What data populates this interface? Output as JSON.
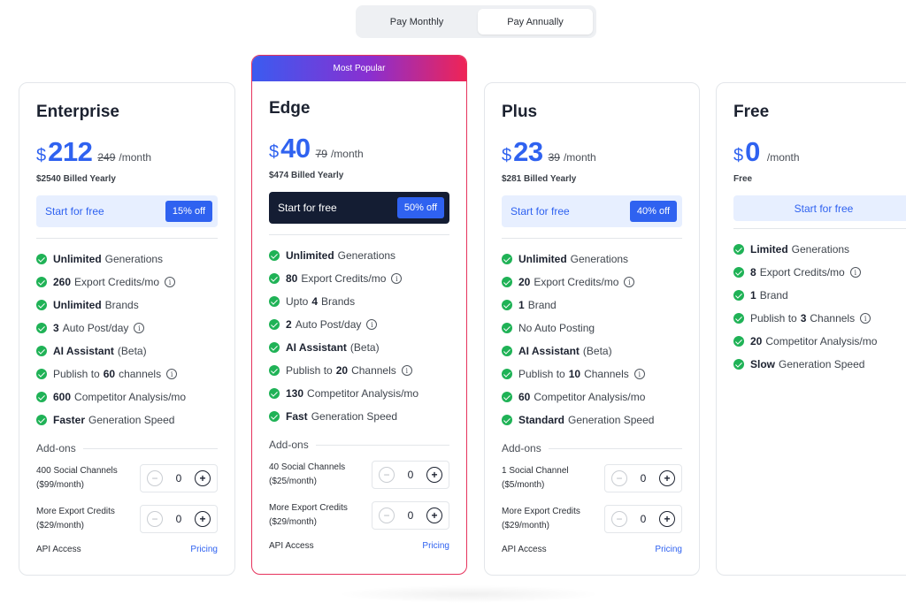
{
  "billing_toggle": {
    "monthly_label": "Pay Monthly",
    "annually_label": "Pay Annually",
    "selected": "annually"
  },
  "colors": {
    "accent": "#2f62f0",
    "check": "#1fb256",
    "popular_border": "#e6335d",
    "edge_cta_bg": "#141d33"
  },
  "plans": [
    {
      "name": "Enterprise",
      "currency": "$",
      "price": "212",
      "old_price": "249",
      "period": "/month",
      "billed": "$2540 Billed Yearly",
      "cta_label": "Start for free",
      "cta_badge": "15% off",
      "features": [
        {
          "strong": "Unlimited",
          "text": "Generations",
          "info": false
        },
        {
          "strong": "260",
          "text": "Export Credits/mo",
          "info": true
        },
        {
          "strong": "Unlimited",
          "text": "Brands",
          "info": false
        },
        {
          "strong": "3",
          "text": "Auto Post/day",
          "info": true
        },
        {
          "strong": "AI Assistant",
          "text": "(Beta)",
          "info": false
        },
        {
          "strong": "",
          "text": "Publish to",
          "strong2": "60",
          "text2": "channels",
          "info": true
        },
        {
          "strong": "600",
          "text": "Competitor Analysis/mo",
          "info": false
        },
        {
          "strong": "Faster",
          "text": "Generation Speed",
          "info": false
        }
      ],
      "addons_title": "Add-ons",
      "addons": [
        {
          "line1": "400 Social Channels",
          "line2": "($99/month)",
          "value": "0",
          "minus": "−",
          "plus": "+"
        },
        {
          "line1": "More Export Credits",
          "line2": "($29/month)",
          "value": "0",
          "minus": "−",
          "plus": "+"
        }
      ],
      "api_label": "API Access",
      "pricing_link": "Pricing"
    },
    {
      "banner": "Most Popular",
      "name": "Edge",
      "currency": "$",
      "price": "40",
      "old_price": "79",
      "period": "/month",
      "billed": "$474 Billed Yearly",
      "cta_label": "Start for free",
      "cta_badge": "50% off",
      "features": [
        {
          "strong": "Unlimited",
          "text": "Generations",
          "info": false
        },
        {
          "strong": "80",
          "text": "Export Credits/mo",
          "info": true
        },
        {
          "strong": "",
          "text": "Upto",
          "strong2": "4",
          "text2": "Brands",
          "info": false
        },
        {
          "strong": "2",
          "text": "Auto Post/day",
          "info": true
        },
        {
          "strong": "AI Assistant",
          "text": "(Beta)",
          "info": false
        },
        {
          "strong": "",
          "text": "Publish to",
          "strong2": "20",
          "text2": "Channels",
          "info": true
        },
        {
          "strong": "130",
          "text": "Competitor Analysis/mo",
          "info": false
        },
        {
          "strong": "Fast",
          "text": "Generation Speed",
          "info": false
        }
      ],
      "addons_title": "Add-ons",
      "addons": [
        {
          "line1": "40 Social Channels",
          "line2": "($25/month)",
          "value": "0",
          "minus": "−",
          "plus": "+"
        },
        {
          "line1": "More Export Credits",
          "line2": "($29/month)",
          "value": "0",
          "minus": "−",
          "plus": "+"
        }
      ],
      "api_label": "API Access",
      "pricing_link": "Pricing"
    },
    {
      "name": "Plus",
      "currency": "$",
      "price": "23",
      "old_price": "39",
      "period": "/month",
      "billed": "$281 Billed Yearly",
      "cta_label": "Start for free",
      "cta_badge": "40% off",
      "features": [
        {
          "strong": "Unlimited",
          "text": "Generations",
          "info": false
        },
        {
          "strong": "20",
          "text": "Export Credits/mo",
          "info": true
        },
        {
          "strong": "1",
          "text": "Brand",
          "info": false
        },
        {
          "strong": "",
          "text": "No Auto Posting",
          "info": false
        },
        {
          "strong": "AI Assistant",
          "text": "(Beta)",
          "info": false
        },
        {
          "strong": "",
          "text": "Publish to",
          "strong2": "10",
          "text2": "Channels",
          "info": true
        },
        {
          "strong": "60",
          "text": "Competitor Analysis/mo",
          "info": false
        },
        {
          "strong": "Standard",
          "text": "Generation Speed",
          "info": false
        }
      ],
      "addons_title": "Add-ons",
      "addons": [
        {
          "line1": "1 Social Channel",
          "line2": "($5/month)",
          "value": "0",
          "minus": "−",
          "plus": "+"
        },
        {
          "line1": "More Export Credits",
          "line2": "($29/month)",
          "value": "0",
          "minus": "−",
          "plus": "+"
        }
      ],
      "api_label": "API Access",
      "pricing_link": "Pricing"
    },
    {
      "name": "Free",
      "currency": "$",
      "price": "0",
      "old_price": "",
      "period": "/month",
      "billed": "Free",
      "cta_label": "Start for free",
      "cta_badge": "",
      "features": [
        {
          "strong": "Limited",
          "text": "Generations",
          "info": false
        },
        {
          "strong": "8",
          "text": "Export Credits/mo",
          "info": true
        },
        {
          "strong": "1",
          "text": "Brand",
          "info": false
        },
        {
          "strong": "",
          "text": "Publish to",
          "strong2": "3",
          "text2": "Channels",
          "info": true
        },
        {
          "strong": "20",
          "text": "Competitor Analysis/mo",
          "info": false
        },
        {
          "strong": "Slow",
          "text": "Generation Speed",
          "info": false
        }
      ]
    }
  ],
  "info_glyph": "i"
}
